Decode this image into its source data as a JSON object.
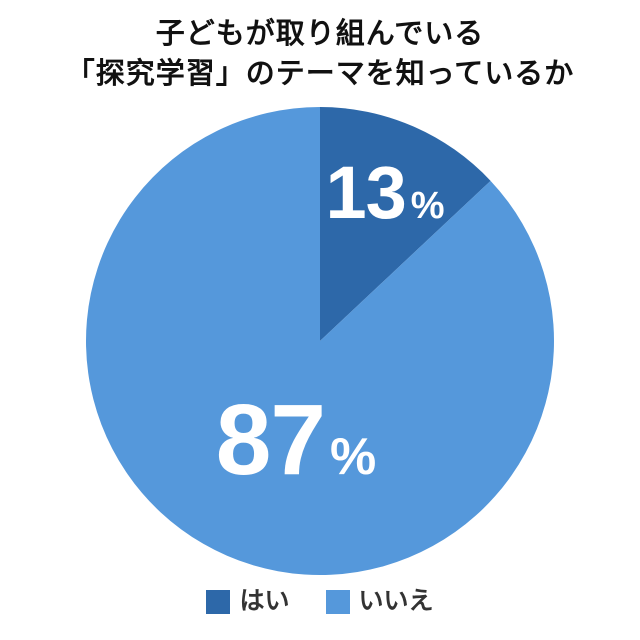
{
  "title": {
    "line1": "子どもが取り組んでいる",
    "line2": "「探究学習」のテーマを知っているか"
  },
  "chart_data": {
    "type": "pie",
    "title": "子どもが取り組んでいる「探究学習」のテーマを知っているか",
    "categories": [
      "はい",
      "いいえ"
    ],
    "values": [
      13,
      87
    ],
    "unit": "%",
    "colors": [
      "#2D68A9",
      "#5598DB"
    ],
    "start_angle_deg": -90,
    "direction": "clockwise",
    "legend_position": "bottom",
    "labels": [
      {
        "value": "13",
        "unit": "%"
      },
      {
        "value": "87",
        "unit": "%"
      }
    ]
  },
  "legend": {
    "items": [
      {
        "label": "はい",
        "color": "#2D68A9"
      },
      {
        "label": "いいえ",
        "color": "#5598DB"
      }
    ]
  }
}
